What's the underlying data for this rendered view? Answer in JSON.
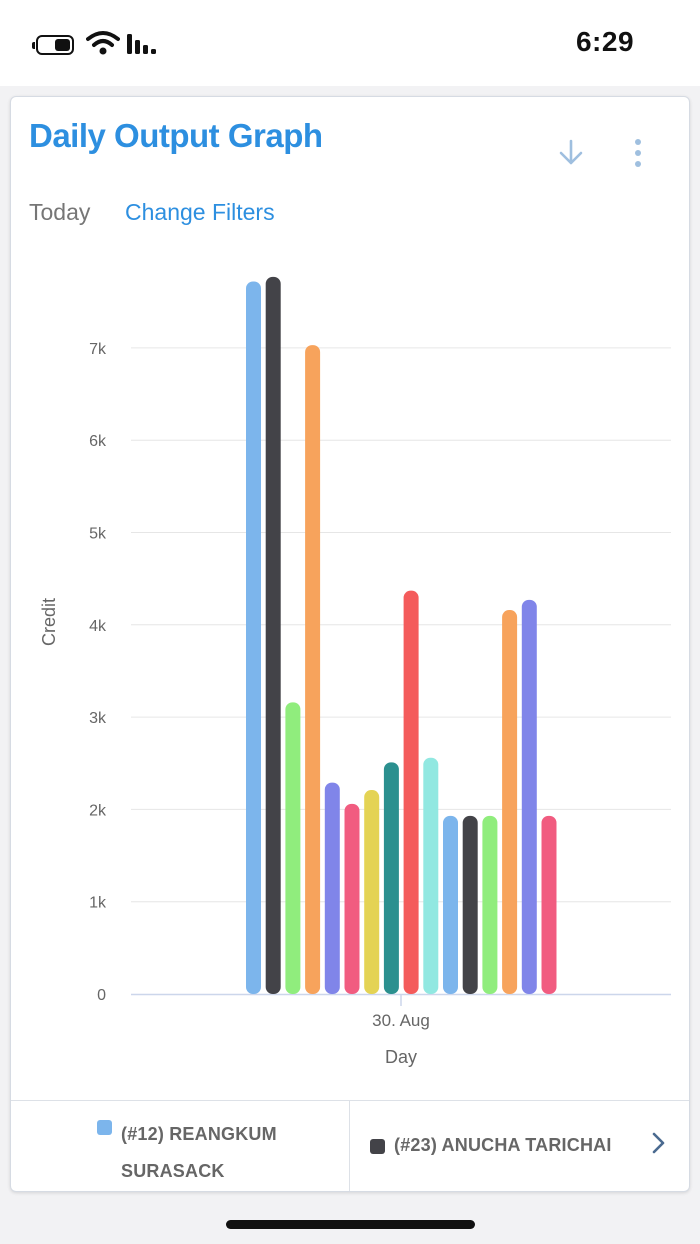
{
  "status_bar": {
    "time": "6:29"
  },
  "header": {
    "title": "Daily Output Graph"
  },
  "filters": {
    "period": "Today",
    "change_label": "Change Filters"
  },
  "colors": {
    "accent": "#2d8fe0",
    "icon_muted": "#9fbfdf"
  },
  "icons": {
    "download": "download-arrow-icon",
    "more": "vertical-dots-icon",
    "next": "chevron-right-icon"
  },
  "chart_data": {
    "type": "bar",
    "xlabel": "Day",
    "ylabel": "Credit",
    "categories": [
      "30. Aug"
    ],
    "yticks": [
      "0",
      "1k",
      "2k",
      "3k",
      "4k",
      "5k",
      "6k",
      "7k"
    ],
    "ylim": [
      0,
      7800
    ],
    "grid": true,
    "legend_placement": "bottom",
    "series": [
      {
        "name": "(#12) REANGKUM SURASACK",
        "value": 7720,
        "color": "#7cb5ec"
      },
      {
        "name": "(#23) ANUCHA TARICHAI",
        "value": 7770,
        "color": "#434348"
      },
      {
        "value": 3160,
        "color": "#90ed7d"
      },
      {
        "value": 7030,
        "color": "#f7a35c"
      },
      {
        "value": 2290,
        "color": "#8085e9"
      },
      {
        "value": 2060,
        "color": "#f15c80"
      },
      {
        "value": 2210,
        "color": "#e4d354"
      },
      {
        "value": 2510,
        "color": "#2b908f"
      },
      {
        "value": 4370,
        "color": "#f45b5b"
      },
      {
        "value": 2560,
        "color": "#91e8e1"
      },
      {
        "value": 1930,
        "color": "#7cb5ec"
      },
      {
        "value": 1930,
        "color": "#434348"
      },
      {
        "value": 1930,
        "color": "#90ed7d"
      },
      {
        "value": 4160,
        "color": "#f7a35c"
      },
      {
        "value": 4270,
        "color": "#8085e9"
      },
      {
        "value": 1930,
        "color": "#f15c80"
      }
    ]
  }
}
